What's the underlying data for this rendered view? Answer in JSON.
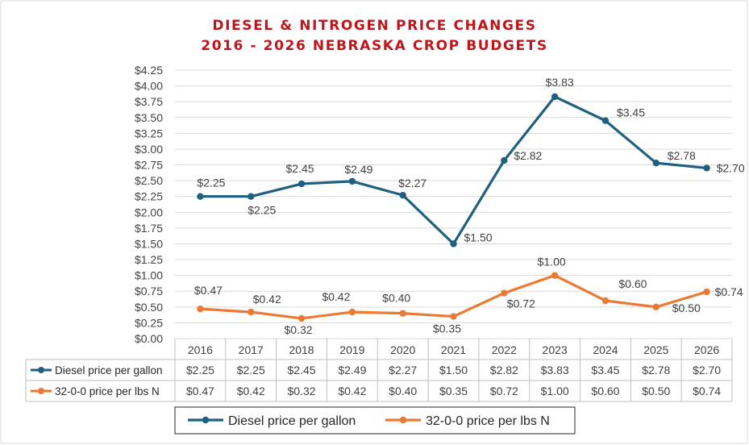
{
  "chart_data": {
    "type": "line",
    "title_line1": "DIESEL & NITROGEN PRICE CHANGES",
    "title_line2": "2016 - 2026 NEBRASKA CROP BUDGETS",
    "categories": [
      "2016",
      "2017",
      "2018",
      "2019",
      "2020",
      "2021",
      "2022",
      "2023",
      "2024",
      "2025",
      "2026"
    ],
    "y_ticks": [
      "$0.00",
      "$0.25",
      "$0.50",
      "$0.75",
      "$1.00",
      "$1.25",
      "$1.50",
      "$1.75",
      "$2.00",
      "$2.25",
      "$2.50",
      "$2.75",
      "$3.00",
      "$3.25",
      "$3.50",
      "$3.75",
      "$4.00",
      "$4.25"
    ],
    "ylim": [
      0,
      4.25
    ],
    "grid": true,
    "legend_position": "bottom",
    "data_table": true,
    "series": [
      {
        "name": "Diesel price per gallon",
        "color": "#1f5f7f",
        "values": [
          2.25,
          2.25,
          2.45,
          2.49,
          2.27,
          1.5,
          2.82,
          3.83,
          3.45,
          2.78,
          2.7
        ],
        "labels": [
          "$2.25",
          "$2.25",
          "$2.45",
          "$2.49",
          "$2.27",
          "$1.50",
          "$2.82",
          "$3.83",
          "$3.45",
          "$2.78",
          "$2.70"
        ]
      },
      {
        "name": "32-0-0 price per lbs N",
        "color": "#ea7a33",
        "values": [
          0.47,
          0.42,
          0.32,
          0.42,
          0.4,
          0.35,
          0.72,
          1.0,
          0.6,
          0.5,
          0.74
        ],
        "labels": [
          "$0.47",
          "$0.42",
          "$0.32",
          "$0.42",
          "$0.40",
          "$0.35",
          "$0.72",
          "$1.00",
          "$0.60",
          "$0.50",
          "$0.74"
        ]
      }
    ]
  }
}
